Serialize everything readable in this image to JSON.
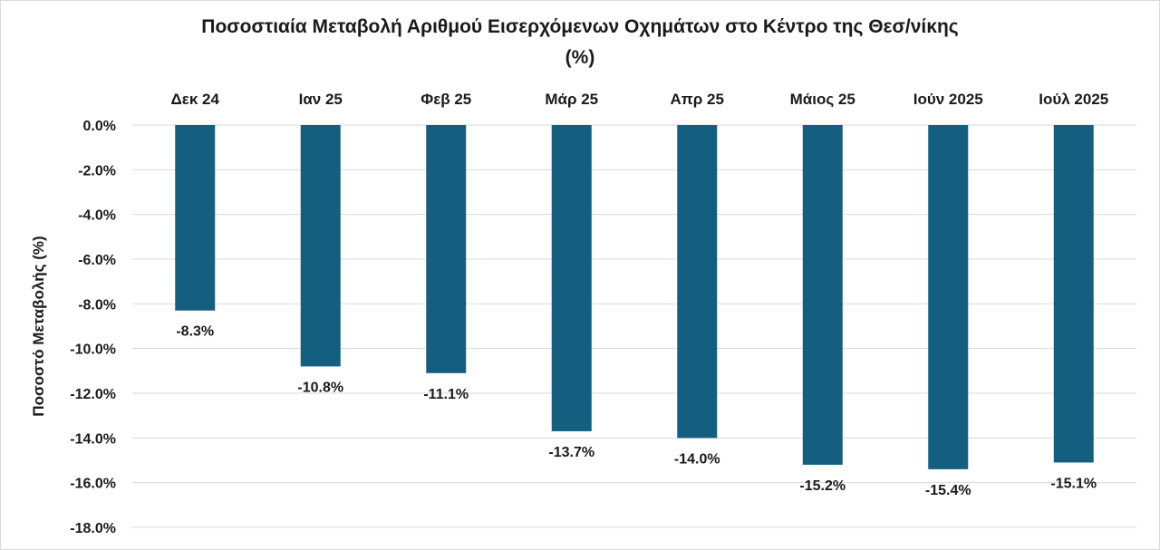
{
  "chart_data": {
    "type": "bar",
    "title_line1": "Ποσοστιαία Μεταβολή Αριθμού Εισερχόμενων Οχημάτων στο Κέντρο της Θεσ/νίκης",
    "title_line2": "(%)",
    "ylabel": "Ποσοστό Μεταβολής (%)",
    "xlabel": "",
    "categories": [
      "Δεκ 24",
      "Ιαν 25",
      "Φεβ 25",
      "Μάρ 25",
      "Απρ 25",
      "Μάιος 25",
      "Ιούν 2025",
      "Ιούλ 2025"
    ],
    "values": [
      -8.3,
      -10.8,
      -11.1,
      -13.7,
      -14.0,
      -15.2,
      -15.4,
      -15.1
    ],
    "value_labels": [
      "-8.3%",
      "-10.8%",
      "-11.1%",
      "-13.7%",
      "-14.0%",
      "-15.2%",
      "-15.4%",
      "-15.1%"
    ],
    "yticks": [
      0,
      -2,
      -4,
      -6,
      -8,
      -10,
      -12,
      -14,
      -16,
      -18
    ],
    "ytick_labels": [
      "0.0%",
      "-2.0%",
      "-4.0%",
      "-6.0%",
      "-8.0%",
      "-10.0%",
      "-12.0%",
      "-14.0%",
      "-16.0%",
      "-18.0%"
    ],
    "ylim": [
      -18,
      0
    ],
    "category_axis_position": "top",
    "grid": true,
    "legend": "none",
    "bar_color": "#145f80",
    "grid_color": "#d9d9d9"
  }
}
